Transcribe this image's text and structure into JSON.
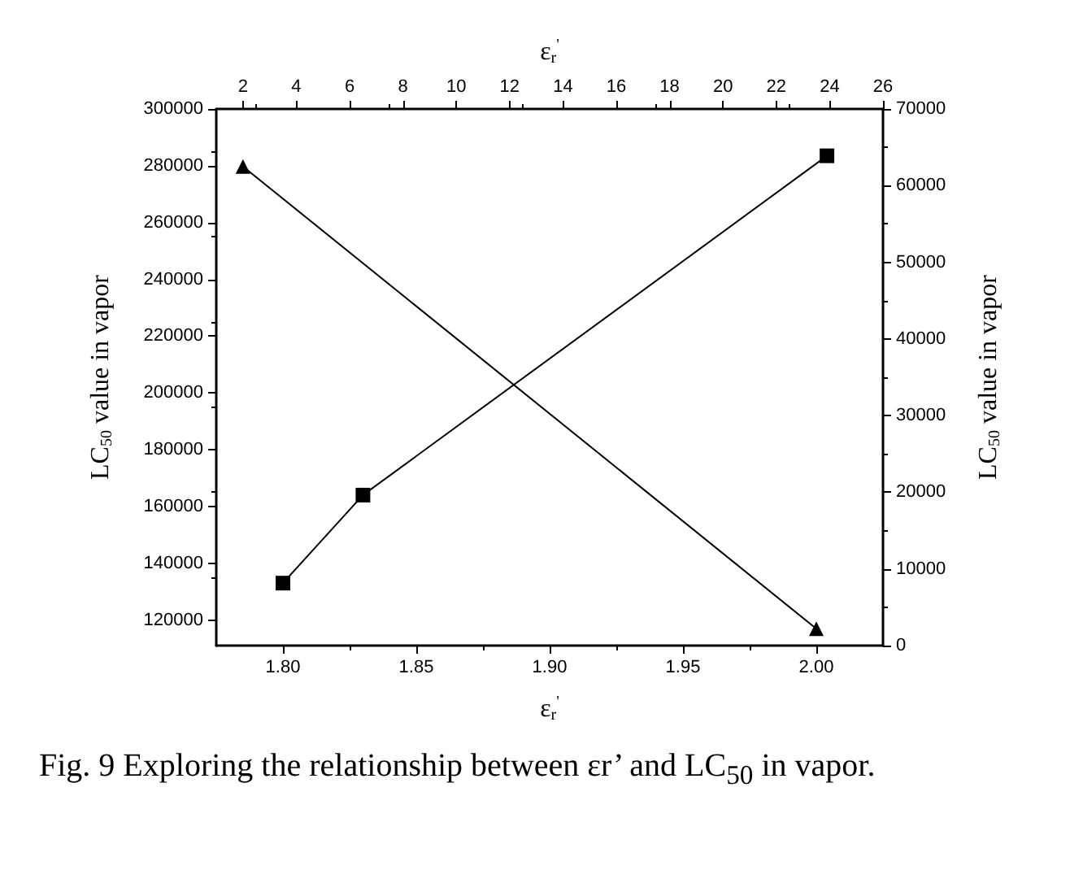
{
  "chart_data": {
    "type": "line",
    "xlabel": "ε$_{r}$$^{'}$",
    "x2label": "ε$_{r}$$^{'}$",
    "ylabel": "LC$_{50}$ value in vapor",
    "y2label": "LC$_{50}$ value in vapor",
    "xlim": [
      1.775,
      2.025
    ],
    "xticks": [
      {
        "value": 1.8,
        "label": "1.80"
      },
      {
        "value": 1.85,
        "label": "1.85"
      },
      {
        "value": 1.9,
        "label": "1.90"
      },
      {
        "value": 1.95,
        "label": "1.95"
      },
      {
        "value": 2.0,
        "label": "2.00"
      }
    ],
    "x2lim": [
      1,
      26
    ],
    "x2ticks": [
      2,
      4,
      6,
      8,
      10,
      12,
      14,
      16,
      18,
      20,
      22,
      24,
      26
    ],
    "ylim": [
      111000,
      300000
    ],
    "yticks": [
      120000,
      140000,
      160000,
      180000,
      200000,
      220000,
      240000,
      260000,
      280000,
      300000
    ],
    "y2lim": [
      0,
      70000
    ],
    "y2ticks": [
      0,
      10000,
      20000,
      30000,
      40000,
      50000,
      60000,
      70000
    ],
    "series": [
      {
        "color": "#000000",
        "marker": "square",
        "x": [
          1.8,
          1.83,
          2.004
        ],
        "values": [
          133000,
          164000,
          283500
        ]
      },
      {
        "color": "#000000",
        "marker": "triangle",
        "axis": "y2",
        "x": [
          1.785,
          2.0
        ],
        "values": [
          62500,
          2200
        ]
      }
    ],
    "grid": false,
    "line_style": "solid",
    "annotations": [
      "Fig. 9  Exploring the relationship between εr’ and LC$_{50}$ in vapor."
    ]
  }
}
